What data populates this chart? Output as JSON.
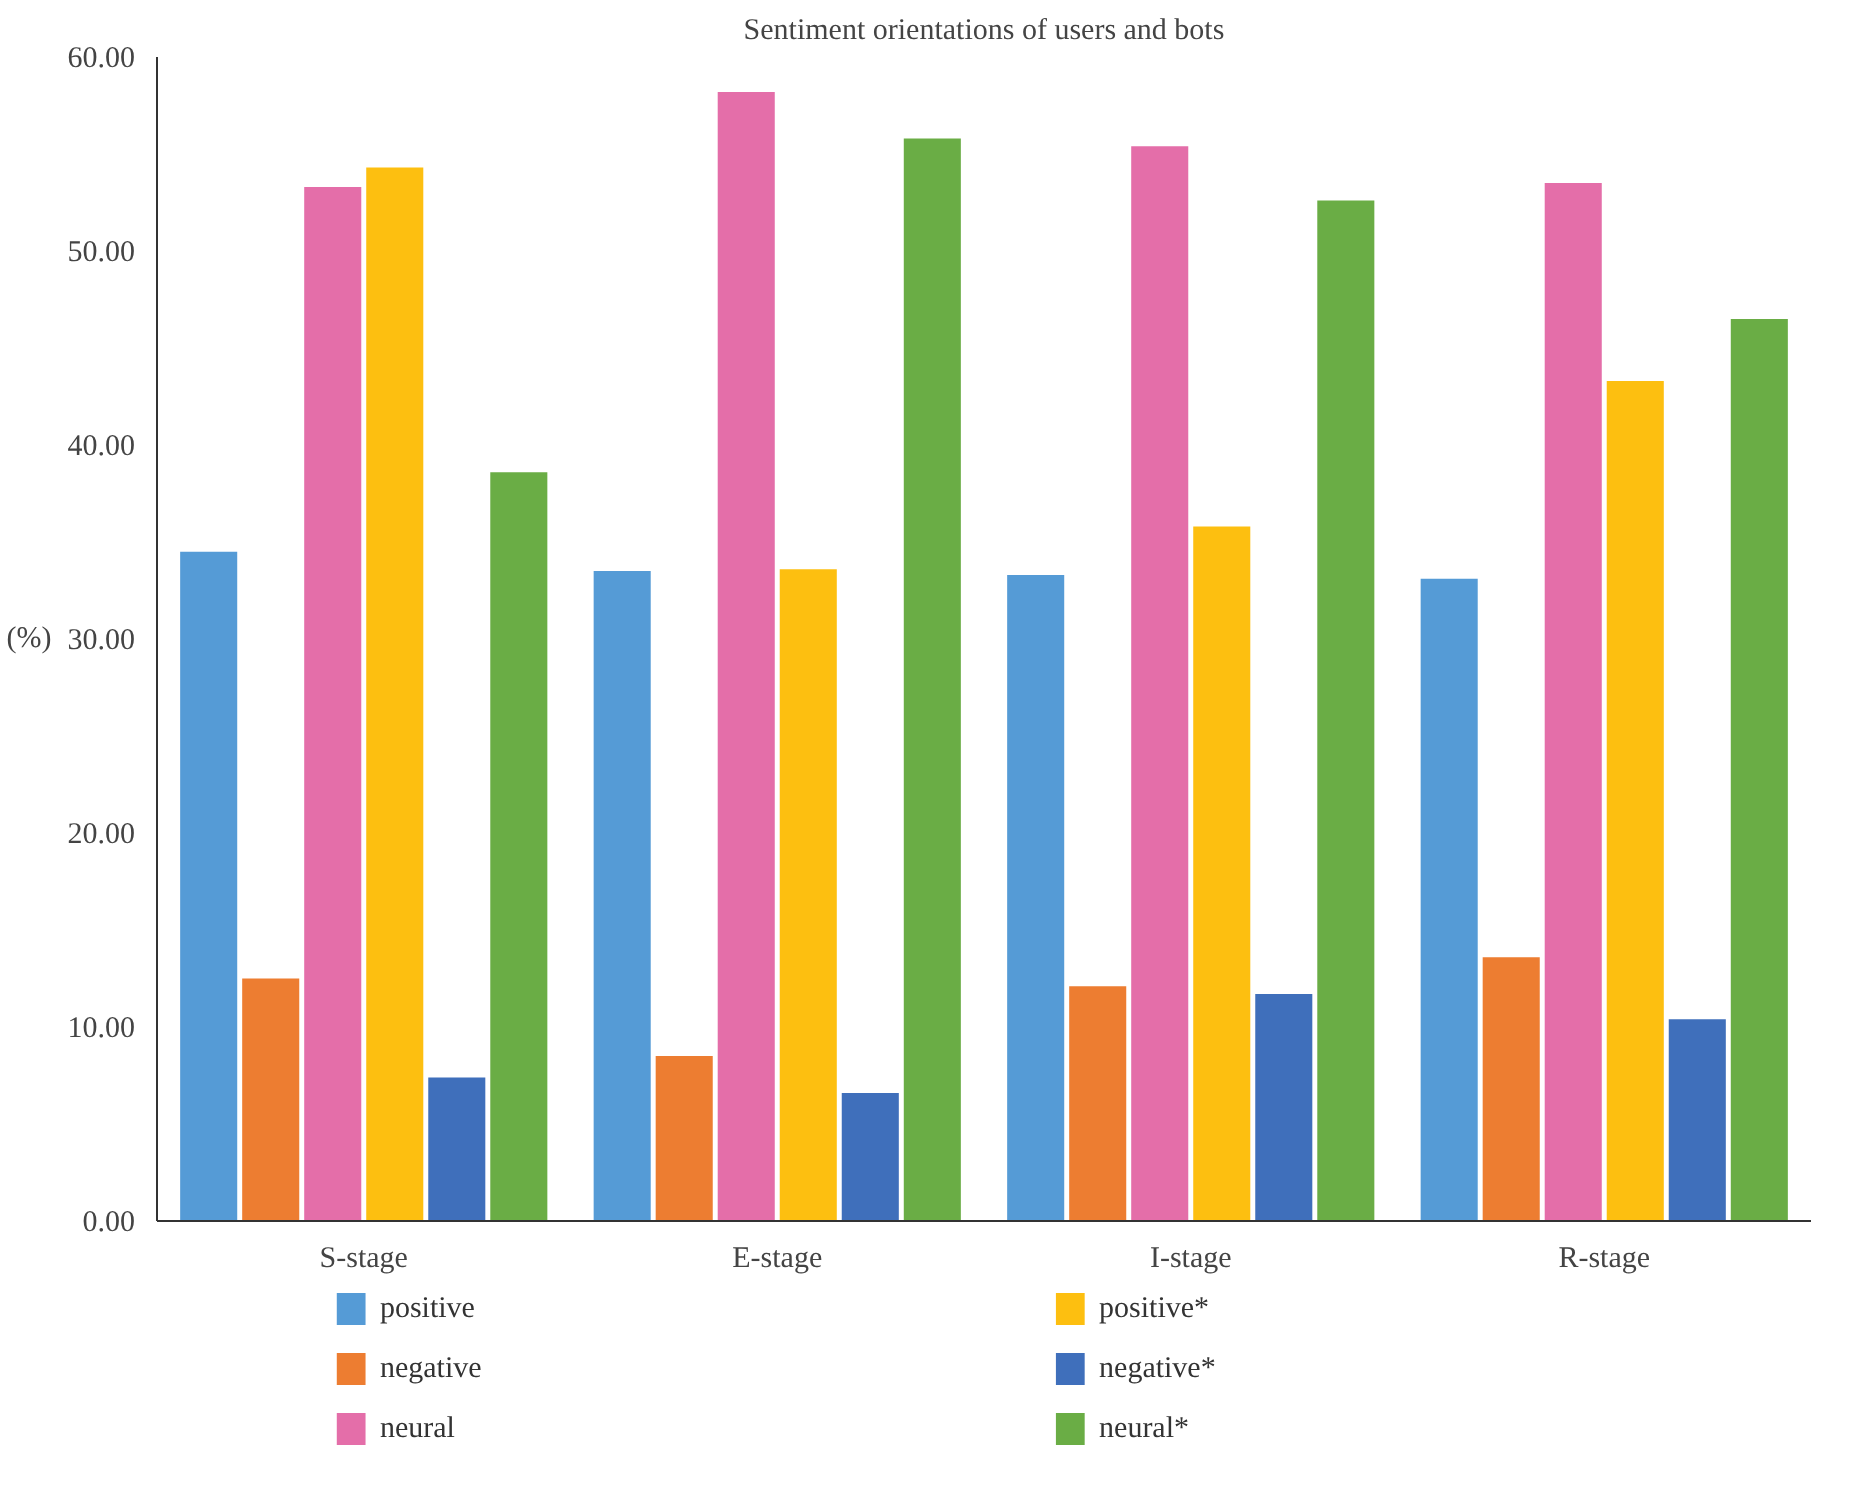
{
  "chart_data": {
    "type": "bar",
    "title": "Sentiment orientations of users and bots",
    "ylabel": "(%)",
    "categories": [
      "S-stage",
      "E-stage",
      "I-stage",
      "R-stage"
    ],
    "series": [
      {
        "name": "positive",
        "color": "#559bd6",
        "values": [
          34.5,
          33.5,
          33.3,
          33.1
        ]
      },
      {
        "name": "negative",
        "color": "#ed7d31",
        "values": [
          12.5,
          8.5,
          12.1,
          13.6
        ]
      },
      {
        "name": "neural",
        "color": "#e46ea9",
        "values": [
          53.3,
          58.2,
          55.4,
          53.5
        ]
      },
      {
        "name": "positive*",
        "color": "#fdbf10",
        "values": [
          54.3,
          33.6,
          35.8,
          43.3
        ]
      },
      {
        "name": "negative*",
        "color": "#3f6fbb",
        "values": [
          7.4,
          6.6,
          11.7,
          10.4
        ]
      },
      {
        "name": "neural*",
        "color": "#6aad45",
        "values": [
          38.6,
          55.8,
          52.6,
          46.5
        ]
      }
    ],
    "ylim": [
      0,
      60
    ],
    "yticks": [
      {
        "value": 0,
        "label": "0.00"
      },
      {
        "value": 10,
        "label": "10.00"
      },
      {
        "value": 20,
        "label": "20.00"
      },
      {
        "value": 30,
        "label": "30.00"
      },
      {
        "value": 40,
        "label": "40.00"
      },
      {
        "value": 50,
        "label": "50.00"
      },
      {
        "value": 60,
        "label": "60.00"
      }
    ],
    "grid": false,
    "legend": "bottom"
  }
}
